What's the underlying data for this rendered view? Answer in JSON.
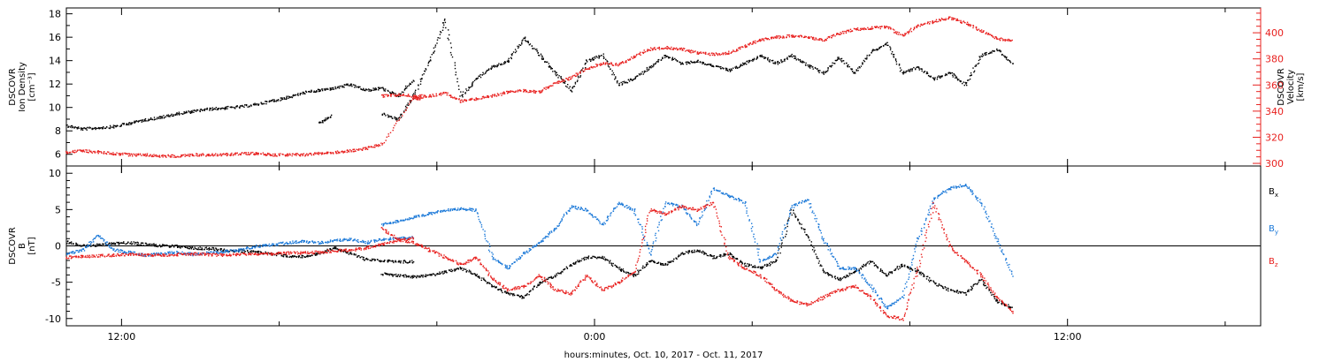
{
  "chart_data": [
    {
      "type": "scatter",
      "title": "",
      "ylabel": [
        "DSCOVR",
        "Ion Density",
        "[cm⁻³]"
      ],
      "ylim": [
        5,
        18.5
      ],
      "yticks": [
        "6",
        "8",
        "10",
        "12",
        "14",
        "16",
        "18"
      ],
      "right_axis": {
        "label": [
          "DSCOVR",
          "Velocity",
          "[km/s]"
        ],
        "ylim": [
          298,
          419
        ],
        "ticks": [
          "300",
          "320",
          "340",
          "360",
          "380",
          "400"
        ],
        "color": "#e8201e"
      },
      "x": {
        "unit": "hours relative to Oct. 11, 2017 00:00",
        "range": [
          -13.4,
          16.9
        ],
        "ticks": [
          "12:00",
          "0:00",
          "12:00"
        ]
      },
      "series": [
        {
          "name": "",
          "axis": "left",
          "color": "#000000",
          "segments": [
            {
              "x": [
                -13.4,
                -13.0,
                -12.6,
                -12.2,
                -11.8,
                -11.4,
                -11.0,
                -10.6,
                -10.2,
                -9.8,
                -9.4,
                -9.0,
                -8.6,
                -8.2,
                -7.8,
                -7.4,
                -7.0,
                -6.6,
                -6.2,
                -5.8,
                -5.4,
                -5.0,
                -4.6,
                -7.0,
                -6.7
              ],
              "y": [
                8.5,
                8.2,
                8.3,
                8.4,
                8.7,
                9.0,
                9.2,
                9.5,
                9.7,
                9.9,
                10.0,
                10.1,
                10.3,
                10.6,
                10.9,
                11.3,
                11.5,
                11.7,
                12.0,
                11.5,
                11.7,
                11.0,
                12.4,
                8.7,
                9.3
              ]
            },
            {
              "x": [
                -5.4,
                -5.0,
                -4.6,
                -4.2,
                -3.8,
                -3.4,
                -3.0,
                -2.6,
                -2.2,
                -1.8,
                -1.4,
                -1.0,
                -0.6,
                -0.2,
                0.2,
                0.6,
                1.0,
                1.4,
                1.8,
                2.2,
                2.6,
                3.0,
                3.4,
                3.8,
                4.2,
                4.6,
                5.0,
                5.4,
                5.8,
                6.2,
                6.6,
                7.0,
                7.4,
                7.8,
                8.2,
                8.6,
                9.0,
                9.4,
                9.8,
                10.2,
                10.6
              ],
              "y": [
                9.5,
                9.0,
                11.0,
                14.0,
                17.5,
                11.0,
                12.5,
                13.5,
                14.0,
                16.0,
                14.5,
                13.0,
                11.5,
                14.0,
                14.5,
                12.0,
                12.5,
                13.5,
                14.5,
                13.8,
                14.0,
                13.6,
                13.2,
                13.8,
                14.5,
                13.8,
                14.5,
                13.6,
                13.0,
                14.3,
                13.0,
                14.8,
                15.5,
                13.0,
                13.5,
                12.5,
                13.0,
                12.0,
                14.5,
                15.0,
                13.8
              ]
            }
          ]
        },
        {
          "name": "",
          "axis": "right",
          "color": "#e8201e",
          "segments": [
            {
              "x": [
                -13.4,
                -13.0,
                -12.6,
                -12.2,
                -11.8,
                -11.4,
                -11.0,
                -10.6,
                -10.2,
                -9.8,
                -9.4,
                -9.0,
                -8.6,
                -8.2,
                -7.8,
                -7.4,
                -7.0,
                -6.6,
                -6.2,
                -5.8,
                -5.4,
                -4.6,
                -4.4
              ],
              "y": [
                309,
                310,
                309,
                308,
                307,
                307,
                306,
                306,
                307,
                307,
                307,
                308,
                308,
                307,
                307,
                307,
                308,
                309,
                310,
                312,
                315,
                350,
                350
              ]
            },
            {
              "x": [
                -5.4,
                -5.0,
                -4.6,
                -4.2,
                -3.8,
                -3.4,
                -3.0,
                -2.6,
                -2.2,
                -1.8,
                -1.4,
                -1.0,
                -0.6,
                -0.2,
                0.2,
                0.6,
                1.0,
                1.4,
                1.8,
                2.2,
                2.6,
                3.0,
                3.4,
                3.8,
                4.2,
                4.6,
                5.0,
                5.4,
                5.8,
                6.2,
                6.6,
                7.0,
                7.4,
                7.8,
                8.2,
                8.6,
                9.0,
                9.4,
                9.8,
                10.2,
                10.6
              ],
              "y": [
                352,
                353,
                352,
                352,
                354,
                348,
                350,
                352,
                355,
                356,
                355,
                362,
                366,
                373,
                377,
                376,
                382,
                388,
                389,
                388,
                385,
                384,
                385,
                390,
                395,
                397,
                398,
                397,
                395,
                400,
                403,
                404,
                405,
                398,
                406,
                409,
                412,
                408,
                402,
                396,
                394
              ]
            }
          ]
        }
      ]
    },
    {
      "type": "scatter",
      "title": "",
      "ylabel": [
        "DSCOVR",
        "B",
        "[nT]"
      ],
      "ylim": [
        -11,
        11
      ],
      "yticks": [
        "-10",
        "-5",
        "0",
        "5",
        "10"
      ],
      "zero_line": true,
      "x": {
        "unit": "hours relative to Oct. 11, 2017 00:00",
        "range": [
          -13.4,
          16.9
        ],
        "ticks": [
          "12:00",
          "0:00",
          "12:00"
        ],
        "label": "hours:minutes, Oct. 10, 2017 - Oct. 11, 2017"
      },
      "legend": {
        "placement": "right"
      },
      "series": [
        {
          "name": "B",
          "subscript": "x",
          "color": "#000000",
          "segments": [
            {
              "x": [
                -13.4,
                -13.0,
                -12.6,
                -12.2,
                -11.8,
                -11.4,
                -11.0,
                -10.6,
                -10.2,
                -9.8,
                -9.4,
                -9.0,
                -8.6,
                -8.2,
                -7.8,
                -7.4,
                -7.0,
                -6.6,
                -6.2,
                -5.8,
                -5.4,
                -5.0,
                -4.6
              ],
              "y": [
                0.6,
                0.1,
                0.2,
                0.4,
                0.5,
                0.3,
                0.1,
                0.0,
                -0.2,
                -0.3,
                -0.5,
                -0.6,
                -0.8,
                -1.0,
                -1.3,
                -1.4,
                -1.0,
                -0.2,
                -1.0,
                -1.8,
                -2.0,
                -2.1,
                -2.1
              ]
            },
            {
              "x": [
                -5.4,
                -5.0,
                -4.6,
                -4.2,
                -3.8,
                -3.4,
                -3.0,
                -2.6,
                -2.2,
                -1.8,
                -1.4,
                -1.0,
                -0.6,
                -0.2,
                0.2,
                0.6,
                1.0,
                1.4,
                1.8,
                2.2,
                2.6,
                3.0,
                3.4,
                3.8,
                4.2,
                4.6,
                5.0,
                5.4,
                5.8,
                6.2,
                6.6,
                7.0,
                7.4,
                7.8,
                8.2,
                8.6,
                9.0,
                9.4,
                9.8,
                10.2,
                10.6
              ],
              "y": [
                -3.8,
                -4.0,
                -4.2,
                -4.0,
                -3.5,
                -3.0,
                -4.0,
                -5.5,
                -6.5,
                -7.0,
                -5.0,
                -4.0,
                -2.5,
                -1.5,
                -1.5,
                -3.0,
                -4.0,
                -2.0,
                -2.5,
                -1.0,
                -0.5,
                -1.5,
                -1.0,
                -2.5,
                -3.0,
                -2.0,
                5.0,
                1.5,
                -3.5,
                -4.5,
                -3.5,
                -2.0,
                -4.0,
                -2.5,
                -3.5,
                -5.0,
                -6.0,
                -6.5,
                -4.5,
                -7.5,
                -8.5
              ]
            }
          ]
        },
        {
          "name": "B",
          "subscript": "y",
          "color": "#1a78d8",
          "segments": [
            {
              "x": [
                -13.4,
                -13.0,
                -12.6,
                -12.2,
                -11.8,
                -11.4,
                -11.0,
                -10.6,
                -10.2,
                -9.8,
                -9.4,
                -9.0,
                -8.6,
                -8.2,
                -7.8,
                -7.4,
                -7.0,
                -6.6,
                -6.2,
                -5.8,
                -5.4,
                -5.0,
                -4.6
              ],
              "y": [
                -1.0,
                -0.5,
                1.5,
                -0.5,
                -0.8,
                -1.2,
                -1.0,
                -0.8,
                -1.1,
                -0.9,
                -0.7,
                -0.5,
                0.0,
                0.2,
                0.5,
                0.7,
                0.5,
                0.8,
                1.0,
                0.5,
                1.0,
                1.1,
                1.2
              ]
            },
            {
              "x": [
                -5.4,
                -5.0,
                -4.6,
                -4.2,
                -3.8,
                -3.4,
                -3.0,
                -2.6,
                -2.2,
                -1.8,
                -1.4,
                -1.0,
                -0.6,
                -0.2,
                0.2,
                0.6,
                1.0,
                1.4,
                1.8,
                2.2,
                2.6,
                3.0,
                3.4,
                3.8,
                4.2,
                4.6,
                5.0,
                5.4,
                5.8,
                6.2,
                6.6,
                7.0,
                7.4,
                7.8,
                8.2,
                8.6,
                9.0,
                9.4,
                9.8,
                10.2,
                10.6
              ],
              "y": [
                3.0,
                3.5,
                4.0,
                4.5,
                5.0,
                5.2,
                5.0,
                -1.5,
                -3.0,
                -1.0,
                0.5,
                2.5,
                5.5,
                5.0,
                3.0,
                6.0,
                5.0,
                -1.0,
                6.0,
                5.5,
                3.0,
                8.0,
                7.0,
                6.0,
                -2.0,
                -1.0,
                5.5,
                6.5,
                1.0,
                -3.0,
                -3.0,
                -5.5,
                -8.5,
                -7.0,
                1.0,
                6.5,
                8.0,
                8.5,
                6.0,
                1.0,
                -4.0
              ]
            }
          ]
        },
        {
          "name": "B",
          "subscript": "z",
          "color": "#e8201e",
          "segments": [
            {
              "x": [
                -13.4,
                -13.0,
                -12.6,
                -12.2,
                -11.8,
                -11.4,
                -11.0,
                -10.6,
                -10.2,
                -9.8,
                -9.4,
                -9.0,
                -8.6,
                -8.2,
                -7.8,
                -7.4,
                -7.0,
                -6.6,
                -6.2,
                -5.8,
                -5.4,
                -5.0,
                -4.6
              ],
              "y": [
                -1.5,
                -1.4,
                -1.3,
                -1.2,
                -1.1,
                -1.2,
                -1.2,
                -1.1,
                -1.0,
                -1.1,
                -1.2,
                -1.1,
                -1.0,
                -1.0,
                -0.9,
                -0.9,
                -0.8,
                -0.6,
                -0.5,
                -0.2,
                0.3,
                0.8,
                1.2
              ]
            },
            {
              "x": [
                -5.4,
                -5.0,
                -4.6,
                -4.2,
                -3.8,
                -3.4,
                -3.0,
                -2.6,
                -2.2,
                -1.8,
                -1.4,
                -1.0,
                -0.6,
                -0.2,
                0.2,
                0.6,
                1.0,
                1.4,
                1.8,
                2.2,
                2.6,
                3.0,
                3.4,
                3.8,
                4.2,
                4.6,
                5.0,
                5.4,
                5.8,
                6.2,
                6.6,
                7.0,
                7.4,
                7.8,
                8.2,
                8.6,
                9.0,
                9.4,
                9.8,
                10.2,
                10.6
              ],
              "y": [
                2.5,
                1.0,
                0.5,
                -0.5,
                -1.5,
                -2.5,
                -1.5,
                -4.5,
                -6.0,
                -5.5,
                -4.0,
                -6.0,
                -6.5,
                -4.0,
                -6.0,
                -5.0,
                -3.5,
                5.0,
                4.5,
                5.5,
                5.0,
                6.0,
                -1.5,
                -3.0,
                -4.0,
                -6.0,
                -7.5,
                -8.0,
                -7.0,
                -6.0,
                -5.5,
                -7.0,
                -9.5,
                -10.0,
                -3.0,
                6.0,
                0.0,
                -2.0,
                -4.0,
                -7.0,
                -9.0
              ]
            }
          ]
        }
      ]
    }
  ]
}
